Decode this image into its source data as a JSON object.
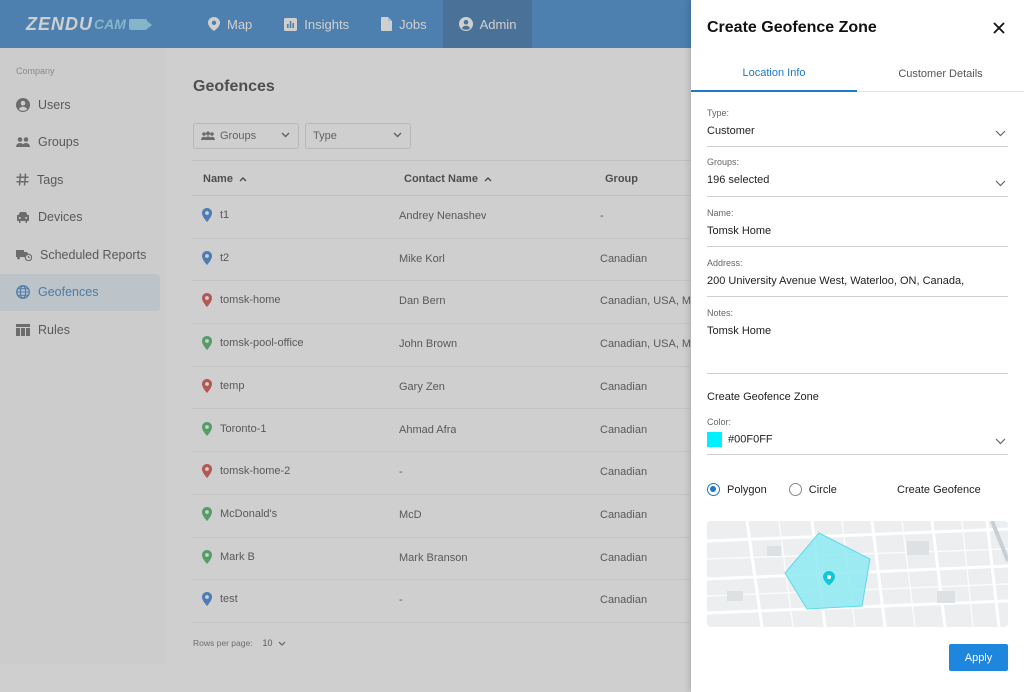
{
  "app": {
    "logo_main": "ZENDU",
    "logo_sub": "CAM"
  },
  "nav": {
    "tabs": [
      {
        "label": "Map",
        "icon": "map-pin-icon"
      },
      {
        "label": "Insights",
        "icon": "bar-chart-icon"
      },
      {
        "label": "Jobs",
        "icon": "document-icon"
      },
      {
        "label": "Admin",
        "icon": "user-circle-icon"
      }
    ],
    "active": "Admin"
  },
  "sidebar": {
    "section": "Company",
    "items": [
      {
        "label": "Users",
        "icon": "user-circle-icon"
      },
      {
        "label": "Groups",
        "icon": "group-icon"
      },
      {
        "label": "Tags",
        "icon": "hashtag-icon"
      },
      {
        "label": "Devices",
        "icon": "car-icon"
      },
      {
        "label": "Scheduled Reports",
        "icon": "truck-clock-icon"
      },
      {
        "label": "Geofences",
        "icon": "globe-icon"
      },
      {
        "label": "Rules",
        "icon": "table-icon"
      }
    ],
    "active": "Geofences"
  },
  "main": {
    "title": "Geofences",
    "filters": {
      "groups": "Groups",
      "type": "Type"
    },
    "columns": {
      "name": "Name",
      "contact": "Contact Name",
      "group": "Group"
    },
    "rows": [
      {
        "name": "t1",
        "contact": "Andrey Nenashev",
        "group": "-",
        "pin_color": "#1f6fd0"
      },
      {
        "name": "t2",
        "contact": "Mike Korl",
        "group": "Canadian",
        "pin_color": "#1f6fd0"
      },
      {
        "name": "tomsk-home",
        "contact": "Dan Bern",
        "group": "Canadian, USA, Me",
        "pin_color": "#d0312d"
      },
      {
        "name": "tomsk-pool-office",
        "contact": "John Brown",
        "group": "Canadian, USA, Me",
        "pin_color": "#2eaa4a"
      },
      {
        "name": "temp",
        "contact": "Gary Zen",
        "group": "Canadian",
        "pin_color": "#d0312d"
      },
      {
        "name": "Toronto-1",
        "contact": "Ahmad Afra",
        "group": "Canadian",
        "pin_color": "#2eaa4a"
      },
      {
        "name": "tomsk-home-2",
        "contact": "-",
        "group": "Canadian",
        "pin_color": "#d0312d"
      },
      {
        "name": "McDonald's",
        "contact": "McD",
        "group": "Canadian",
        "pin_color": "#2eaa4a"
      },
      {
        "name": "Mark B",
        "contact": "Mark Branson",
        "group": "Canadian",
        "pin_color": "#2eaa4a"
      },
      {
        "name": "test",
        "contact": "-",
        "group": "Canadian",
        "pin_color": "#1f6fd0"
      }
    ],
    "rows_per_page_label": "Rows per page:",
    "rows_per_page": "10"
  },
  "drawer": {
    "title": "Create Geofence Zone",
    "tabs": [
      "Location Info",
      "Customer Details"
    ],
    "active_tab": "Location Info",
    "fields": {
      "type": {
        "label": "Type:",
        "value": "Customer"
      },
      "groups": {
        "label": "Groups:",
        "value": "196 selected"
      },
      "name": {
        "label": "Name:",
        "value": "Tomsk Home"
      },
      "address": {
        "label": "Address:",
        "value": "200 University Avenue West, Waterloo, ON, Canada,"
      },
      "notes": {
        "label": "Notes:",
        "value": "Tomsk Home"
      }
    },
    "zone_title": "Create Geofence Zone",
    "color": {
      "label": "Color:",
      "value": "#00F0FF"
    },
    "shape_options": [
      "Polygon",
      "Circle"
    ],
    "selected_shape": "Polygon",
    "create_link": "Create Geofence",
    "apply_label": "Apply"
  }
}
